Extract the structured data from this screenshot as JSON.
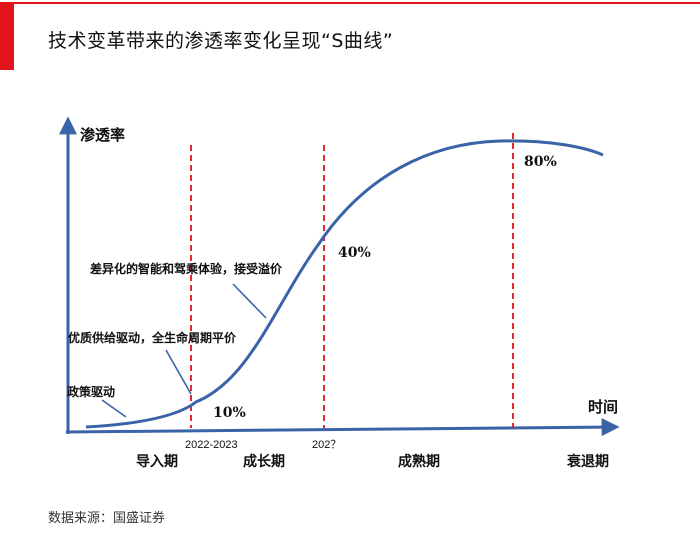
{
  "title": "技术变革带来的渗透率变化呈现“S曲线”",
  "source": "数据来源：国盛证券",
  "colors": {
    "accent": "#e2131a",
    "curve": "#3a63a8",
    "divider": "#e2131a"
  },
  "axes": {
    "y_label": "渗透率",
    "x_label": "时间"
  },
  "stages": [
    {
      "name": "导入期"
    },
    {
      "name": "成长期"
    },
    {
      "name": "成熟期"
    },
    {
      "name": "衰退期"
    }
  ],
  "dividers": [
    {
      "year_label": "2022-2023"
    },
    {
      "year_label": "202？"
    },
    {
      "year_label": ""
    }
  ],
  "milestones": [
    {
      "value": "10%"
    },
    {
      "value": "40%"
    },
    {
      "value": "80%"
    }
  ],
  "annotations": [
    {
      "text": "政策驱动"
    },
    {
      "text": "优质供给驱动，全生命周期平价"
    },
    {
      "text": "差异化的智能和驾乘体验，接受溢价"
    }
  ]
}
